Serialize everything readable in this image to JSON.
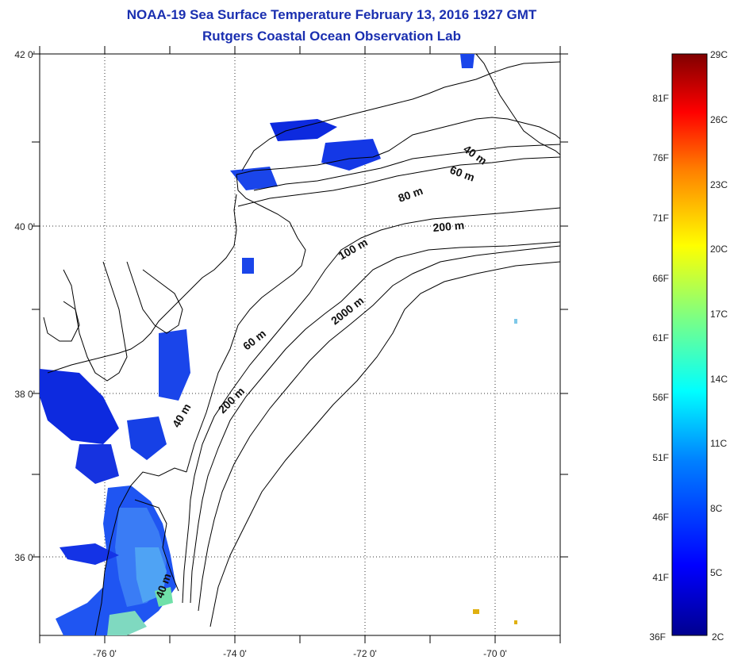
{
  "title": {
    "line1": "NOAA-19 Sea Surface Temperature February 13, 2016 1927 GMT",
    "line2": "Rutgers Coastal Ocean Observation Lab"
  },
  "map": {
    "lat_labels": [
      "42 0'",
      "40 0'",
      "38 0'",
      "36 0'"
    ],
    "lon_labels": [
      "-76 0'",
      "-74 0'",
      "-72 0'",
      "-70 0'"
    ],
    "contour_labels": [
      "40 m",
      "60 m",
      "80 m",
      "200 m",
      "100 m",
      "2000 m",
      "60 m",
      "200 m",
      "40 m",
      "40 m"
    ]
  },
  "colorbar": {
    "fahrenheit_labels": [
      "81F",
      "76F",
      "71F",
      "66F",
      "61F",
      "56F",
      "51F",
      "46F",
      "41F",
      "36F"
    ],
    "celsius_labels": [
      "29C",
      "26C",
      "23C",
      "20C",
      "17C",
      "14C",
      "11C",
      "8C",
      "5C",
      "2C"
    ],
    "colors": [
      "#00008f",
      "#0000ff",
      "#0080ff",
      "#00ffff",
      "#80ff80",
      "#ffff00",
      "#ff8000",
      "#ff0000",
      "#800000"
    ]
  }
}
